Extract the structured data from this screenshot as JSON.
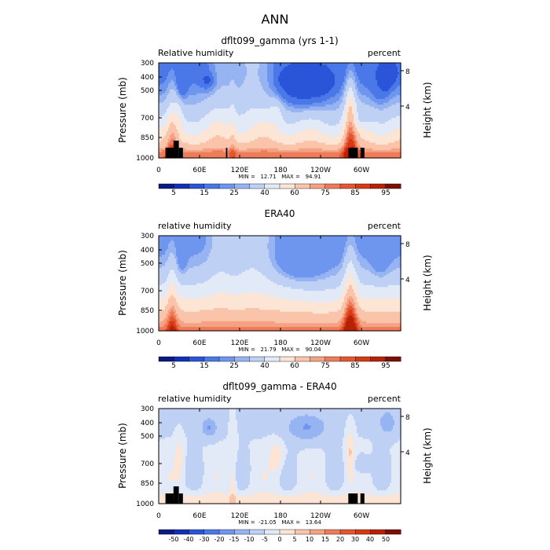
{
  "figure_title": "ANN",
  "chart_data": [
    {
      "type": "heatmap",
      "title": "dflt099_gamma (yrs 1-1)",
      "left_label": "Relative humidity",
      "right_label": "percent",
      "ylabel": "Pressure (mb)",
      "ylabel_right": "Height (km)",
      "x_ticks": [
        "0",
        "60E",
        "120E",
        "180",
        "120W",
        "60W"
      ],
      "y_ticks": [
        "300",
        "400",
        "500",
        "700",
        "850",
        "1000"
      ],
      "y_ticks_right": [
        "8",
        "4"
      ],
      "min_max_text": "MIN =   12.71   MAX =   94.91",
      "colorbar_labels": [
        "5",
        "15",
        "25",
        "40",
        "60",
        "75",
        "85",
        "95"
      ],
      "levels": [
        5,
        10,
        15,
        20,
        25,
        30,
        40,
        50,
        60,
        70,
        75,
        80,
        85,
        90,
        95
      ],
      "colors": [
        "#0a1a80",
        "#1030b8",
        "#2a55d8",
        "#4a78e8",
        "#6f96ee",
        "#97b4f2",
        "#bfd0f5",
        "#e2e9f7",
        "#fde5d6",
        "#f9c4aa",
        "#f4a283",
        "#ee7c5a",
        "#e45630",
        "#d63a12",
        "#b62208",
        "#7a1004"
      ],
      "field": "model_rh"
    },
    {
      "type": "heatmap",
      "title": "ERA40",
      "left_label": "relative humidity",
      "right_label": "percent",
      "ylabel": "Pressure (mb)",
      "ylabel_right": "Height (km)",
      "x_ticks": [
        "0",
        "60E",
        "120E",
        "180",
        "120W",
        "60W"
      ],
      "y_ticks": [
        "300",
        "400",
        "500",
        "700",
        "850",
        "1000"
      ],
      "y_ticks_right": [
        "8",
        "4"
      ],
      "min_max_text": "MIN =   21.79   MAX =   90.04",
      "colorbar_labels": [
        "5",
        "15",
        "25",
        "40",
        "60",
        "75",
        "85",
        "95"
      ],
      "levels": [
        5,
        10,
        15,
        20,
        25,
        30,
        40,
        50,
        60,
        70,
        75,
        80,
        85,
        90,
        95
      ],
      "colors": [
        "#0a1a80",
        "#1030b8",
        "#2a55d8",
        "#4a78e8",
        "#6f96ee",
        "#97b4f2",
        "#bfd0f5",
        "#e2e9f7",
        "#fde5d6",
        "#f9c4aa",
        "#f4a283",
        "#ee7c5a",
        "#e45630",
        "#d63a12",
        "#b62208",
        "#7a1004"
      ],
      "field": "era_rh"
    },
    {
      "type": "heatmap",
      "title": "dflt099_gamma - ERA40",
      "left_label": "relative humidity",
      "right_label": "percent",
      "ylabel": "Pressure (mb)",
      "ylabel_right": "Height (km)",
      "x_ticks": [
        "0",
        "60E",
        "120E",
        "180",
        "120W",
        "60W"
      ],
      "y_ticks": [
        "300",
        "400",
        "500",
        "700",
        "850",
        "1000"
      ],
      "y_ticks_right": [
        "8",
        "4"
      ],
      "min_max_text": "MIN =  -21.05   MAX =   13.64",
      "colorbar_labels": [
        "-50",
        "-40",
        "-30",
        "-20",
        "-15",
        "-10",
        "-5",
        "0",
        "5",
        "10",
        "15",
        "20",
        "30",
        "40",
        "50"
      ],
      "levels": [
        -50,
        -40,
        -30,
        -20,
        -15,
        -10,
        -5,
        0,
        5,
        10,
        15,
        20,
        30,
        40,
        50
      ],
      "colors": [
        "#0a1a80",
        "#1030b8",
        "#2a55d8",
        "#4a78e8",
        "#6f96ee",
        "#97b4f2",
        "#bfd0f5",
        "#e2e9f7",
        "#fde5d6",
        "#f9c4aa",
        "#f4a283",
        "#ee7c5a",
        "#e45630",
        "#d63a12",
        "#b62208",
        "#7a1004"
      ],
      "field": "diff_rh"
    }
  ]
}
